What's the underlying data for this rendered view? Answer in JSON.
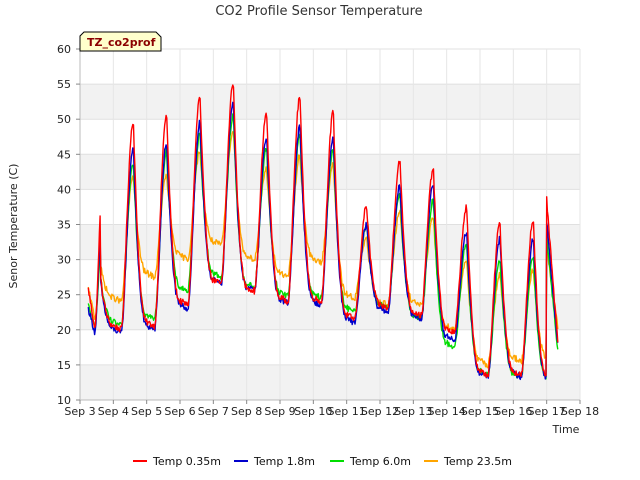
{
  "chart_data": {
    "type": "line",
    "title": "CO2 Profile Sensor Temperature",
    "xlabel": "Time",
    "ylabel": "Senor Temperature (C)",
    "tag": "TZ_co2prof",
    "x_ticks": [
      "Sep 3",
      "Sep 4",
      "Sep 5",
      "Sep 6",
      "Sep 7",
      "Sep 8",
      "Sep 9",
      "Sep 10",
      "Sep 11",
      "Sep 12",
      "Sep 13",
      "Sep 14",
      "Sep 15",
      "Sep 16",
      "Sep 17",
      "Sep 18"
    ],
    "y_ticks": [
      10,
      15,
      20,
      25,
      30,
      35,
      40,
      45,
      50,
      55,
      60
    ],
    "xlim": [
      3,
      18
    ],
    "ylim": [
      10,
      60
    ],
    "grid": true,
    "legend": "bottom",
    "series": [
      {
        "name": "Temp 0.35m",
        "color": "#ff0000",
        "daily": [
          {
            "min": 20.0,
            "max": null
          },
          {
            "min": 20.0,
            "max": 49.8
          },
          {
            "min": 20.5,
            "max": 50.7
          },
          {
            "min": 23.5,
            "max": 53.3
          },
          {
            "min": 26.5,
            "max": 55.3
          },
          {
            "min": 25.5,
            "max": 51.0
          },
          {
            "min": 24.0,
            "max": 53.3
          },
          {
            "min": 24.0,
            "max": 51.0
          },
          {
            "min": 21.5,
            "max": 37.6
          },
          {
            "min": 23.0,
            "max": 44.2
          },
          {
            "min": 22.0,
            "max": 43.0
          },
          {
            "min": 19.5,
            "max": 37.5
          },
          {
            "min": 13.5,
            "max": 35.3
          },
          {
            "min": 13.5,
            "max": 35.7
          },
          {
            "min": 12.5,
            "max": 38.5
          },
          {
            "min": 16.5,
            "max": null
          }
        ]
      },
      {
        "name": "Temp 1.8m",
        "color": "#0000cc",
        "daily": [
          {
            "min": 19.5,
            "max": null
          },
          {
            "min": 19.5,
            "max": 46.0
          },
          {
            "min": 20.0,
            "max": 46.7
          },
          {
            "min": 23.0,
            "max": 49.5
          },
          {
            "min": 26.5,
            "max": 52.5
          },
          {
            "min": 25.5,
            "max": 47.5
          },
          {
            "min": 23.8,
            "max": 49.0
          },
          {
            "min": 23.5,
            "max": 47.5
          },
          {
            "min": 21.0,
            "max": 35.0
          },
          {
            "min": 22.5,
            "max": 40.5
          },
          {
            "min": 21.5,
            "max": 41.0
          },
          {
            "min": 18.5,
            "max": 34.0
          },
          {
            "min": 13.3,
            "max": 33.0
          },
          {
            "min": 13.3,
            "max": 33.0
          },
          {
            "min": 12.5,
            "max": 35.5
          },
          {
            "min": 16.5,
            "max": null
          }
        ]
      },
      {
        "name": "Temp 6.0m",
        "color": "#00dd00",
        "daily": [
          {
            "min": 20.0,
            "max": null
          },
          {
            "min": 20.5,
            "max": 44.0
          },
          {
            "min": 21.5,
            "max": 45.5
          },
          {
            "min": 25.5,
            "max": 48.0
          },
          {
            "min": 27.5,
            "max": 50.5
          },
          {
            "min": 26.0,
            "max": 46.0
          },
          {
            "min": 24.8,
            "max": 48.0
          },
          {
            "min": 24.5,
            "max": 46.0
          },
          {
            "min": 22.5,
            "max": 35.0
          },
          {
            "min": 23.0,
            "max": 39.5
          },
          {
            "min": 21.5,
            "max": 38.5
          },
          {
            "min": 17.5,
            "max": 32.5
          },
          {
            "min": 13.5,
            "max": 30.0
          },
          {
            "min": 13.2,
            "max": 30.5
          },
          {
            "min": 12.3,
            "max": 33.5
          },
          {
            "min": 16.0,
            "max": null
          }
        ]
      },
      {
        "name": "Temp 23.5m",
        "color": "#ffa500",
        "daily": [
          {
            "min": 21.5,
            "max": null
          },
          {
            "min": 24.0,
            "max": 42.0
          },
          {
            "min": 27.5,
            "max": 42.0
          },
          {
            "min": 30.0,
            "max": 45.5
          },
          {
            "min": 32.0,
            "max": 48.5
          },
          {
            "min": 30.0,
            "max": 43.0
          },
          {
            "min": 27.5,
            "max": 44.8
          },
          {
            "min": 29.5,
            "max": 43.5
          },
          {
            "min": 24.5,
            "max": 33.0
          },
          {
            "min": 23.5,
            "max": 37.0
          },
          {
            "min": 23.5,
            "max": 36.0
          },
          {
            "min": 20.0,
            "max": 30.0
          },
          {
            "min": 15.0,
            "max": 28.0
          },
          {
            "min": 15.5,
            "max": 28.5
          },
          {
            "min": 15.5,
            "max": 31.5
          },
          {
            "min": 17.0,
            "max": null
          }
        ]
      }
    ],
    "start_value": [
      25.8,
      23.0,
      23.5,
      25.8
    ],
    "end_value": [
      17.0,
      17.0,
      16.0,
      20.0
    ],
    "data_range": [
      3.25,
      17.35
    ]
  }
}
